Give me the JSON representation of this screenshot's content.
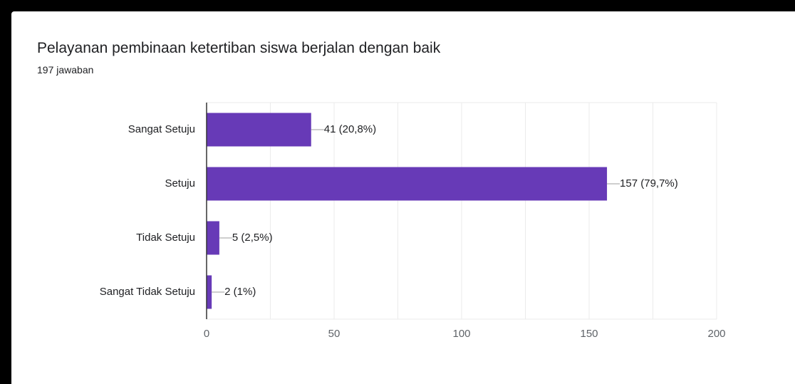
{
  "header": {
    "title": "Pelayanan pembinaan ketertiban siswa berjalan dengan baik",
    "response_count": "197 jawaban"
  },
  "colors": {
    "bar": "#673ab7",
    "grid": "#ebebeb",
    "axis": "#333333",
    "label": "#202124",
    "tick": "#5f6368"
  },
  "chart_data": {
    "type": "bar",
    "orientation": "horizontal",
    "categories": [
      "Sangat Setuju",
      "Setuju",
      "Tidak Setuju",
      "Sangat Tidak Setuju"
    ],
    "values": [
      41,
      157,
      5,
      2
    ],
    "data_labels": [
      "41 (20,8%)",
      "157 (79,7%)",
      "5 (2,5%)",
      "2 (1%)"
    ],
    "xlim": [
      0,
      200
    ],
    "x_ticks": [
      0,
      50,
      100,
      150,
      200
    ],
    "grid": true,
    "legend": "none"
  }
}
